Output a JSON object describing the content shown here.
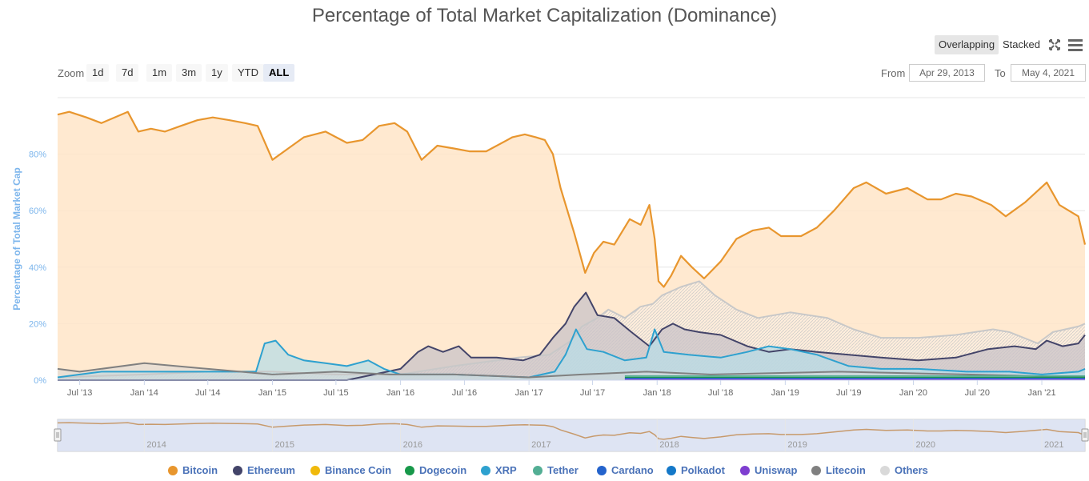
{
  "title": "Percentage of Total Market Capitalization (Dominance)",
  "toolbar": {
    "overlapping": "Overlapping",
    "stacked": "Stacked"
  },
  "zoom": {
    "label": "Zoom",
    "buttons": [
      "1d",
      "7d",
      "1m",
      "3m",
      "1y",
      "YTD",
      "ALL"
    ],
    "active": "ALL"
  },
  "range": {
    "from_label": "From",
    "from_value": "Apr 29, 2013",
    "to_label": "To",
    "to_value": "May 4, 2021"
  },
  "colors": {
    "bitcoin": "#e8962e",
    "ethereum": "#434469",
    "xrp": "#2ea1cf",
    "others": "#c8c8c8",
    "litecoin": "#808080",
    "grid": "#e6e6e6",
    "axis_label": "#7cb5ec"
  },
  "chart_data": {
    "type": "area",
    "title": "Percentage of Total Market Capitalization (Dominance)",
    "ylabel": "Percentage of Total Market Cap",
    "ylim": [
      0,
      100
    ],
    "y_ticks": [
      "0%",
      "20%",
      "40%",
      "60%",
      "80%"
    ],
    "x_ticks": [
      "Jul '13",
      "Jan '14",
      "Jul '14",
      "Jan '15",
      "Jul '15",
      "Jan '16",
      "Jul '16",
      "Jan '17",
      "Jul '17",
      "Jan '18",
      "Jul '18",
      "Jan '19",
      "Jul '19",
      "Jan '20",
      "Jul '20",
      "Jan '21"
    ],
    "x_range": [
      "2013-04-29",
      "2021-05-04"
    ],
    "navigator_ticks": [
      "2014",
      "2015",
      "2016",
      "2017",
      "2018",
      "2019",
      "2020",
      "2021"
    ],
    "legend": [
      "Bitcoin",
      "Ethereum",
      "Binance Coin",
      "Dogecoin",
      "XRP",
      "Tether",
      "Cardano",
      "Polkadot",
      "Uniswap",
      "Litecoin",
      "Others"
    ],
    "legend_colors": [
      "#e8962e",
      "#434469",
      "#f0b90b",
      "#17984a",
      "#2ea1cf",
      "#53ae94",
      "#2463cc",
      "#1478c8",
      "#7e3ed0",
      "#808080",
      "#d9d9d9"
    ],
    "series": [
      {
        "name": "Bitcoin",
        "color": "#e8962e",
        "points": [
          [
            "2013-04-29",
            94
          ],
          [
            "2013-06-01",
            95
          ],
          [
            "2013-07-20",
            93
          ],
          [
            "2013-09-01",
            91
          ],
          [
            "2013-11-15",
            95
          ],
          [
            "2013-12-15",
            88
          ],
          [
            "2014-01-20",
            89
          ],
          [
            "2014-03-01",
            88
          ],
          [
            "2014-04-15",
            90
          ],
          [
            "2014-06-01",
            92
          ],
          [
            "2014-07-15",
            93
          ],
          [
            "2014-09-01",
            92
          ],
          [
            "2014-10-15",
            91
          ],
          [
            "2014-11-20",
            90
          ],
          [
            "2015-01-01",
            78
          ],
          [
            "2015-02-15",
            82
          ],
          [
            "2015-04-01",
            86
          ],
          [
            "2015-06-01",
            88
          ],
          [
            "2015-08-01",
            84
          ],
          [
            "2015-09-15",
            85
          ],
          [
            "2015-11-01",
            90
          ],
          [
            "2015-12-15",
            91
          ],
          [
            "2016-01-20",
            88
          ],
          [
            "2016-03-01",
            78
          ],
          [
            "2016-04-15",
            83
          ],
          [
            "2016-06-01",
            82
          ],
          [
            "2016-07-15",
            81
          ],
          [
            "2016-09-01",
            81
          ],
          [
            "2016-11-15",
            86
          ],
          [
            "2016-12-20",
            87
          ],
          [
            "2017-01-20",
            86
          ],
          [
            "2017-02-15",
            85
          ],
          [
            "2017-03-10",
            80
          ],
          [
            "2017-04-01",
            68
          ],
          [
            "2017-05-10",
            52
          ],
          [
            "2017-06-10",
            38
          ],
          [
            "2017-07-05",
            45
          ],
          [
            "2017-08-01",
            49
          ],
          [
            "2017-09-01",
            48
          ],
          [
            "2017-10-15",
            57
          ],
          [
            "2017-11-15",
            55
          ],
          [
            "2017-12-10",
            62
          ],
          [
            "2017-12-25",
            50
          ],
          [
            "2018-01-05",
            35
          ],
          [
            "2018-01-20",
            33
          ],
          [
            "2018-02-10",
            37
          ],
          [
            "2018-03-10",
            44
          ],
          [
            "2018-04-10",
            40
          ],
          [
            "2018-05-15",
            36
          ],
          [
            "2018-07-01",
            42
          ],
          [
            "2018-08-15",
            50
          ],
          [
            "2018-10-01",
            53
          ],
          [
            "2018-11-15",
            54
          ],
          [
            "2018-12-20",
            51
          ],
          [
            "2019-02-15",
            51
          ],
          [
            "2019-04-01",
            54
          ],
          [
            "2019-05-20",
            60
          ],
          [
            "2019-07-15",
            68
          ],
          [
            "2019-08-20",
            70
          ],
          [
            "2019-10-15",
            66
          ],
          [
            "2019-12-15",
            68
          ],
          [
            "2020-02-10",
            64
          ],
          [
            "2020-03-20",
            64
          ],
          [
            "2020-05-01",
            66
          ],
          [
            "2020-06-15",
            65
          ],
          [
            "2020-08-10",
            62
          ],
          [
            "2020-09-20",
            58
          ],
          [
            "2020-11-15",
            63
          ],
          [
            "2021-01-15",
            70
          ],
          [
            "2021-02-20",
            62
          ],
          [
            "2021-04-15",
            58
          ],
          [
            "2021-05-04",
            48
          ]
        ]
      },
      {
        "name": "Others",
        "color": "#c8c8c8",
        "points": [
          [
            "2013-04-29",
            1
          ],
          [
            "2014-01-01",
            2
          ],
          [
            "2014-07-01",
            3
          ],
          [
            "2015-01-01",
            3
          ],
          [
            "2015-07-01",
            2
          ],
          [
            "2016-01-01",
            2
          ],
          [
            "2016-06-01",
            5
          ],
          [
            "2016-12-01",
            8
          ],
          [
            "2017-03-01",
            9
          ],
          [
            "2017-05-01",
            14
          ],
          [
            "2017-06-01",
            19
          ],
          [
            "2017-07-15",
            22
          ],
          [
            "2017-08-15",
            25
          ],
          [
            "2017-10-01",
            22
          ],
          [
            "2017-11-15",
            26
          ],
          [
            "2017-12-20",
            27
          ],
          [
            "2018-01-15",
            30
          ],
          [
            "2018-03-10",
            33
          ],
          [
            "2018-05-01",
            35
          ],
          [
            "2018-06-15",
            30
          ],
          [
            "2018-08-15",
            25
          ],
          [
            "2018-10-15",
            22
          ],
          [
            "2019-01-15",
            24
          ],
          [
            "2019-05-01",
            22
          ],
          [
            "2019-07-15",
            18
          ],
          [
            "2019-10-01",
            15
          ],
          [
            "2020-01-15",
            15
          ],
          [
            "2020-05-01",
            16
          ],
          [
            "2020-08-15",
            18
          ],
          [
            "2020-10-01",
            17
          ],
          [
            "2020-12-20",
            13
          ],
          [
            "2021-02-01",
            17
          ],
          [
            "2021-04-15",
            19
          ],
          [
            "2021-05-04",
            20
          ]
        ]
      },
      {
        "name": "Ethereum",
        "color": "#434469",
        "points": [
          [
            "2013-04-29",
            0
          ],
          [
            "2015-08-01",
            0
          ],
          [
            "2016-01-01",
            4
          ],
          [
            "2016-02-20",
            10
          ],
          [
            "2016-03-20",
            12
          ],
          [
            "2016-05-01",
            10
          ],
          [
            "2016-06-15",
            12
          ],
          [
            "2016-07-20",
            8
          ],
          [
            "2016-10-01",
            8
          ],
          [
            "2016-12-15",
            7
          ],
          [
            "2017-02-01",
            9
          ],
          [
            "2017-03-10",
            15
          ],
          [
            "2017-04-15",
            20
          ],
          [
            "2017-05-10",
            26
          ],
          [
            "2017-06-12",
            31
          ],
          [
            "2017-07-15",
            23
          ],
          [
            "2017-09-01",
            22
          ],
          [
            "2017-10-20",
            17
          ],
          [
            "2017-12-10",
            12
          ],
          [
            "2018-01-15",
            18
          ],
          [
            "2018-02-15",
            20
          ],
          [
            "2018-03-20",
            18
          ],
          [
            "2018-05-01",
            17
          ],
          [
            "2018-07-01",
            16
          ],
          [
            "2018-09-15",
            12
          ],
          [
            "2018-11-15",
            10
          ],
          [
            "2019-01-15",
            11
          ],
          [
            "2019-04-01",
            10
          ],
          [
            "2019-07-01",
            9
          ],
          [
            "2019-10-01",
            8
          ],
          [
            "2020-01-15",
            7
          ],
          [
            "2020-05-01",
            8
          ],
          [
            "2020-08-01",
            11
          ],
          [
            "2020-10-15",
            12
          ],
          [
            "2020-12-15",
            11
          ],
          [
            "2021-01-15",
            14
          ],
          [
            "2021-03-01",
            12
          ],
          [
            "2021-04-15",
            13
          ],
          [
            "2021-05-04",
            16
          ]
        ]
      },
      {
        "name": "XRP",
        "color": "#2ea1cf",
        "points": [
          [
            "2013-04-29",
            1
          ],
          [
            "2013-09-01",
            3
          ],
          [
            "2014-01-01",
            3
          ],
          [
            "2014-07-01",
            3
          ],
          [
            "2014-11-15",
            3
          ],
          [
            "2014-12-10",
            13
          ],
          [
            "2015-01-10",
            14
          ],
          [
            "2015-02-15",
            9
          ],
          [
            "2015-04-01",
            7
          ],
          [
            "2015-06-01",
            6
          ],
          [
            "2015-08-01",
            5
          ],
          [
            "2015-10-01",
            7
          ],
          [
            "2015-11-15",
            4
          ],
          [
            "2016-01-01",
            2
          ],
          [
            "2016-06-01",
            2
          ],
          [
            "2017-01-01",
            1
          ],
          [
            "2017-03-15",
            3
          ],
          [
            "2017-04-15",
            9
          ],
          [
            "2017-05-15",
            18
          ],
          [
            "2017-06-15",
            11
          ],
          [
            "2017-08-01",
            10
          ],
          [
            "2017-10-01",
            7
          ],
          [
            "2017-12-01",
            8
          ],
          [
            "2017-12-25",
            18
          ],
          [
            "2018-01-20",
            10
          ],
          [
            "2018-04-01",
            9
          ],
          [
            "2018-07-01",
            8
          ],
          [
            "2018-09-15",
            10
          ],
          [
            "2018-11-15",
            12
          ],
          [
            "2019-01-15",
            11
          ],
          [
            "2019-04-01",
            9
          ],
          [
            "2019-07-01",
            5
          ],
          [
            "2019-10-01",
            4
          ],
          [
            "2020-01-15",
            4
          ],
          [
            "2020-06-01",
            3
          ],
          [
            "2020-10-01",
            3
          ],
          [
            "2021-01-01",
            2
          ],
          [
            "2021-04-15",
            3
          ],
          [
            "2021-05-04",
            4
          ]
        ]
      },
      {
        "name": "Litecoin",
        "color": "#808080",
        "points": [
          [
            "2013-04-29",
            4
          ],
          [
            "2013-07-01",
            3
          ],
          [
            "2014-01-01",
            6
          ],
          [
            "2014-07-01",
            4
          ],
          [
            "2015-01-01",
            2
          ],
          [
            "2015-07-01",
            3
          ],
          [
            "2015-12-01",
            2
          ],
          [
            "2016-06-01",
            2
          ],
          [
            "2017-01-01",
            1
          ],
          [
            "2017-06-01",
            2
          ],
          [
            "2017-12-01",
            3
          ],
          [
            "2018-06-01",
            2
          ],
          [
            "2019-06-01",
            3
          ],
          [
            "2020-06-01",
            2
          ],
          [
            "2021-05-04",
            1
          ]
        ]
      }
    ]
  }
}
